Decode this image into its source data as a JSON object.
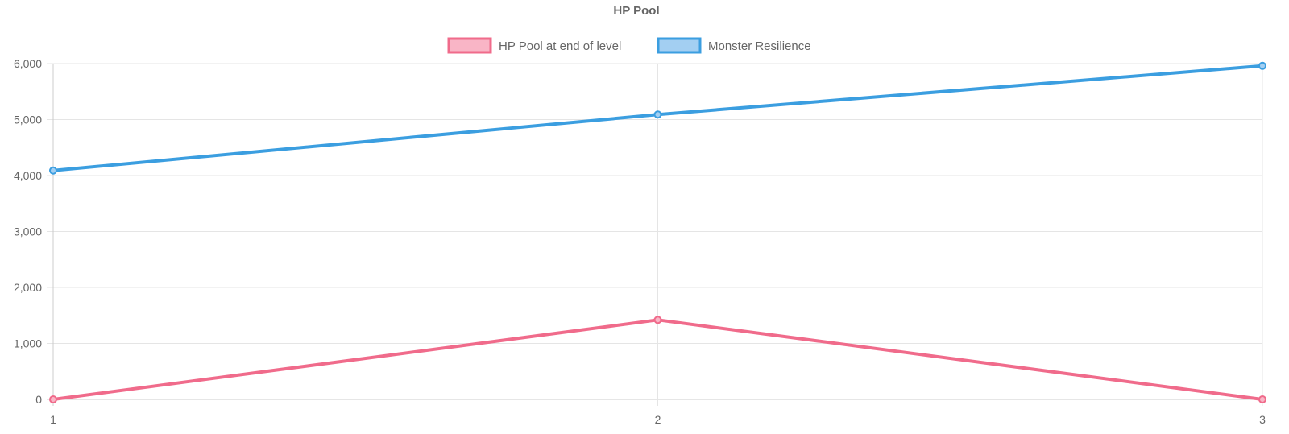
{
  "chart_data": {
    "type": "line",
    "title": "HP Pool",
    "xlabel": "",
    "ylabel": "",
    "categories": [
      "1",
      "2",
      "3"
    ],
    "ylim": [
      0,
      6000
    ],
    "yticks": [
      0,
      1000,
      2000,
      3000,
      4000,
      5000,
      6000
    ],
    "ytick_labels": [
      "0",
      "1,000",
      "2,000",
      "3,000",
      "4,000",
      "5,000",
      "6,000"
    ],
    "grid": true,
    "legend_position": "top-center",
    "series": [
      {
        "name": "HP Pool at end of level",
        "values": [
          0,
          1420,
          0
        ],
        "color": "#f06b8b",
        "fill": "#f9b5c6"
      },
      {
        "name": "Monster Resilience",
        "values": [
          4090,
          5090,
          5960
        ],
        "color": "#3b9ee0",
        "fill": "#a3cff2"
      }
    ]
  }
}
